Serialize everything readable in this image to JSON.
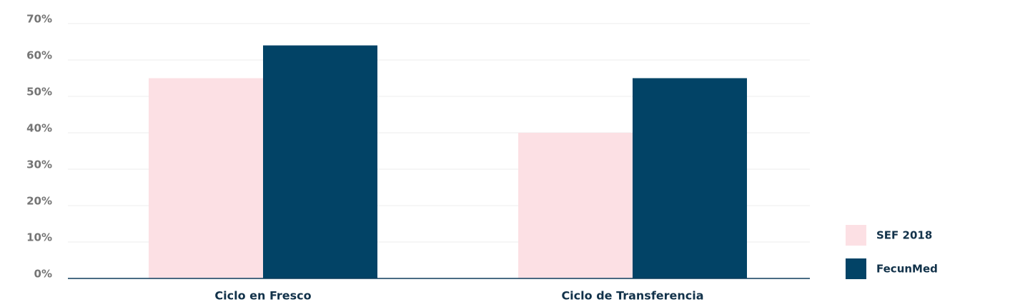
{
  "chart_data": {
    "type": "bar",
    "categories": [
      "Ciclo en Fresco",
      "Ciclo de Transferencia"
    ],
    "series": [
      {
        "name": "SEF 2018",
        "color": "#fce0e4",
        "values": [
          55,
          40
        ]
      },
      {
        "name": "FecunMed",
        "color": "#024366",
        "values": [
          64,
          55
        ]
      }
    ],
    "ylim": [
      0,
      70
    ],
    "yticks": [
      {
        "value": 0,
        "label": "0%"
      },
      {
        "value": 10,
        "label": "10%"
      },
      {
        "value": 20,
        "label": "20%"
      },
      {
        "value": 30,
        "label": "30%"
      },
      {
        "value": 40,
        "label": "40%"
      },
      {
        "value": 50,
        "label": "50%"
      },
      {
        "value": 60,
        "label": "60%"
      },
      {
        "value": 70,
        "label": "70%"
      }
    ],
    "grid": true
  }
}
